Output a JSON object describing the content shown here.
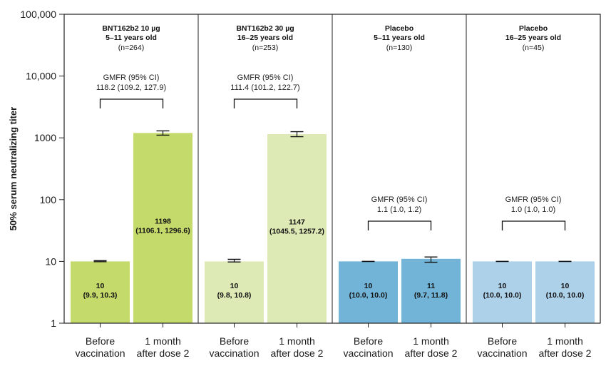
{
  "chart_data": {
    "type": "bar",
    "ylabel": "50% serum neutralizing titer",
    "yscale": "log",
    "ylim": [
      1,
      100000
    ],
    "yticks": [
      {
        "value": 1,
        "label": "1"
      },
      {
        "value": 10,
        "label": "10"
      },
      {
        "value": 100,
        "label": "100"
      },
      {
        "value": 1000,
        "label": "1000"
      },
      {
        "value": 10000,
        "label": "10,000"
      },
      {
        "value": 100000,
        "label": "100,000"
      }
    ],
    "categories": [
      [
        "Before",
        "vaccination"
      ],
      [
        "1 month",
        "after dose 2"
      ]
    ],
    "panels": [
      {
        "title": [
          "BNT162b2 10 µg",
          "5–11 years old"
        ],
        "n": "(n=264)",
        "color": "#c4da6b",
        "gmfr": {
          "header": "GMFR (95% CI)",
          "value": "118.2 (109.2, 127.9)"
        },
        "bars": [
          {
            "value": 10,
            "ci": [
              9.9,
              10.3
            ],
            "label": "10",
            "ci_label": "(9.9, 10.3)"
          },
          {
            "value": 1198,
            "ci": [
              1106.1,
              1296.6
            ],
            "label": "1198",
            "ci_label": "(1106.1, 1296.6)"
          }
        ]
      },
      {
        "title": [
          "BNT162b2 30 µg",
          "16–25 years old"
        ],
        "n": "(n=253)",
        "color": "#deeab5",
        "gmfr": {
          "header": "GMFR (95% CI)",
          "value": "111.4 (101.2, 122.7)"
        },
        "bars": [
          {
            "value": 10,
            "ci": [
              9.8,
              10.8
            ],
            "label": "10",
            "ci_label": "(9.8, 10.8)"
          },
          {
            "value": 1147,
            "ci": [
              1045.5,
              1257.2
            ],
            "label": "1147",
            "ci_label": "(1045.5, 1257.2)"
          }
        ]
      },
      {
        "title": [
          "Placebo",
          "5–11 years old"
        ],
        "n": "(n=130)",
        "color": "#72b4d7",
        "gmfr": {
          "header": "GMFR (95% CI)",
          "value": "1.1 (1.0, 1.2)"
        },
        "bars": [
          {
            "value": 10,
            "ci": [
              10.0,
              10.0
            ],
            "label": "10",
            "ci_label": "(10.0, 10.0)"
          },
          {
            "value": 11,
            "ci": [
              9.7,
              11.8
            ],
            "label": "11",
            "ci_label": "(9.7, 11.8)"
          }
        ]
      },
      {
        "title": [
          "Placebo",
          "16–25 years old"
        ],
        "n": "(n=45)",
        "color": "#aed1ea",
        "gmfr": {
          "header": "GMFR (95% CI)",
          "value": "1.0 (1.0, 1.0)"
        },
        "bars": [
          {
            "value": 10,
            "ci": [
              10.0,
              10.0
            ],
            "label": "10",
            "ci_label": "(10.0, 10.0)"
          },
          {
            "value": 10,
            "ci": [
              10.0,
              10.0
            ],
            "label": "10",
            "ci_label": "(10.0, 10.0)"
          }
        ]
      }
    ]
  }
}
